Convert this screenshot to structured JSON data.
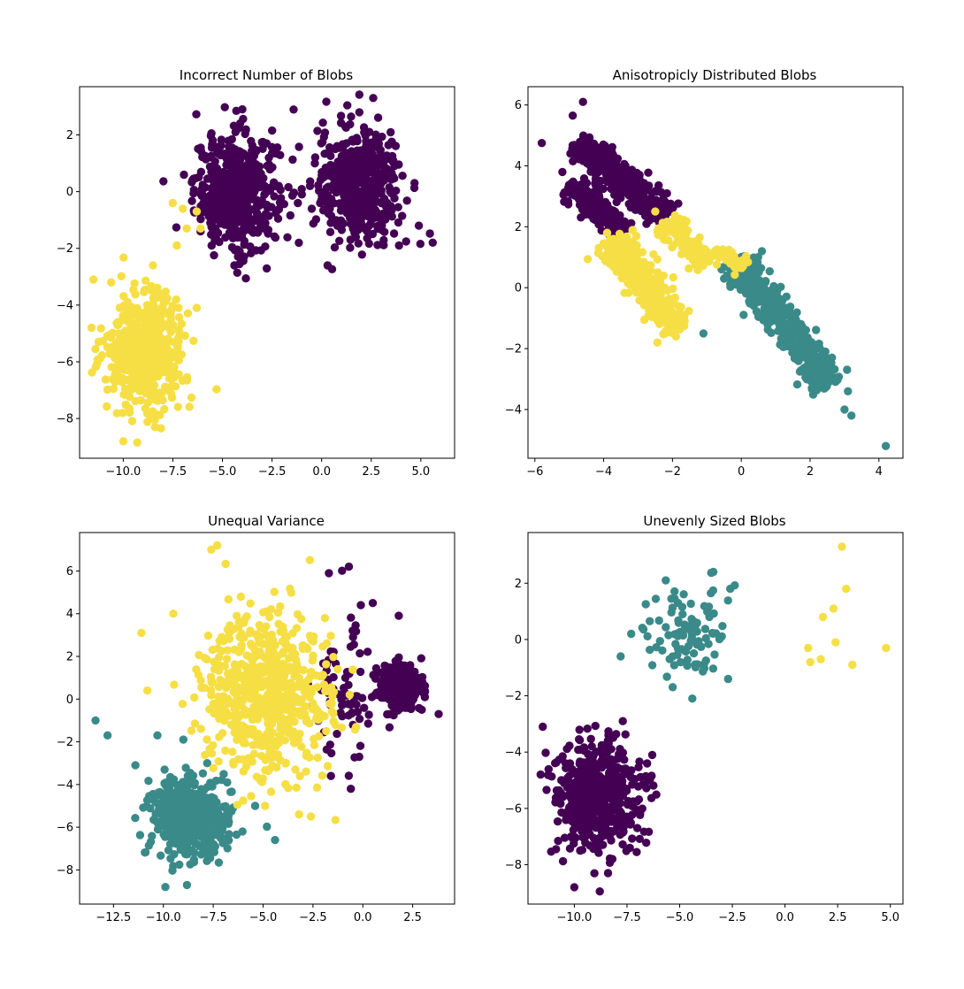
{
  "figure": {
    "background": "#ffffff",
    "colors": {
      "cluster_a": "#440154",
      "cluster_b": "#3b8a8a",
      "cluster_c": "#f5df45"
    }
  },
  "chart_data": [
    {
      "type": "scatter",
      "title": "Incorrect Number of Blobs",
      "xlabel": "",
      "ylabel": "",
      "xlim": [
        -12.2,
        6.7
      ],
      "ylim": [
        -9.4,
        3.7
      ],
      "xticks": [
        -10,
        -7.5,
        -5,
        -2.5,
        0,
        2.5,
        5
      ],
      "xtick_labels": [
        "−10.0",
        "−7.5",
        "−5.0",
        "−2.5",
        "0.0",
        "2.5",
        "5.0"
      ],
      "yticks": [
        -8,
        -6,
        -4,
        -2,
        0,
        2
      ],
      "ytick_labels": [
        "−8",
        "−6",
        "−4",
        "−2",
        "0",
        "2"
      ],
      "grid": false,
      "legend": "none",
      "series": [
        {
          "color": "#440154",
          "clusters": [
            {
              "cx": -4.3,
              "cy": 0.0,
              "sx": 1.05,
              "sy": 1.0,
              "n": 500
            },
            {
              "cx": 1.9,
              "cy": 0.25,
              "sx": 1.05,
              "sy": 1.0,
              "n": 500
            }
          ],
          "points": [
            [
              -4.0,
              2.9
            ],
            [
              -4.3,
              2.85
            ],
            [
              2.6,
              3.3
            ],
            [
              1.9,
              2.8
            ],
            [
              5.6,
              -1.8
            ],
            [
              4.9,
              -1.2
            ],
            [
              -4.4,
              -2.6
            ],
            [
              0.3,
              -2.6
            ],
            [
              -1.0,
              -0.1
            ],
            [
              -0.5,
              -0.6
            ],
            [
              -1.2,
              -0.4
            ],
            [
              3.9,
              -1.9
            ],
            [
              -6.1,
              -1.4
            ]
          ]
        },
        {
          "color": "#f5df45",
          "clusters": [
            {
              "cx": -8.9,
              "cy": -5.6,
              "sx": 1.0,
              "sy": 1.0,
              "n": 500
            }
          ],
          "points": [
            [
              -11.5,
              -3.1
            ],
            [
              -10.0,
              -8.8
            ],
            [
              -8.4,
              -8.3
            ],
            [
              -7.5,
              -0.4
            ],
            [
              -7.0,
              -0.6
            ],
            [
              -6.8,
              -1.3
            ],
            [
              -6.3,
              -0.7
            ],
            [
              -6.1,
              -1.3
            ],
            [
              -7.3,
              -1.9
            ],
            [
              -6.3,
              -4.1
            ],
            [
              -11.6,
              -4.8
            ]
          ]
        }
      ]
    },
    {
      "type": "scatter",
      "title": "Anisotropicly Distributed Blobs",
      "xlabel": "",
      "ylabel": "",
      "xlim": [
        -6.2,
        4.7
      ],
      "ylim": [
        -5.6,
        6.6
      ],
      "xticks": [
        -6,
        -4,
        -2,
        0,
        2,
        4
      ],
      "xtick_labels": [
        "−6",
        "−4",
        "−2",
        "0",
        "2",
        "4"
      ],
      "yticks": [
        -4,
        -2,
        0,
        2,
        4,
        6
      ],
      "ytick_labels": [
        "−4",
        "−2",
        "0",
        "2",
        "4",
        "6"
      ],
      "grid": false,
      "legend": "none",
      "series": [
        {
          "color": "#440154",
          "segments": [
            {
              "x1": -4.8,
              "y1": 4.8,
              "x2": -2.2,
              "y2": 2.3,
              "w": 0.28,
              "n": 320
            },
            {
              "x1": -5.0,
              "y1": 3.4,
              "x2": -3.4,
              "y2": 1.8,
              "w": 0.22,
              "n": 180
            }
          ],
          "points": [
            [
              -5.8,
              4.75
            ],
            [
              -4.6,
              6.1
            ],
            [
              -5.2,
              3.8
            ],
            [
              -4.9,
              5.65
            ],
            [
              -5.0,
              3.3
            ]
          ]
        },
        {
          "color": "#3b8a8a",
          "segments": [
            {
              "x1": -0.2,
              "y1": 0.9,
              "x2": 2.6,
              "y2": -3.2,
              "w": 0.25,
              "n": 500
            }
          ],
          "points": [
            [
              4.2,
              -5.2
            ],
            [
              3.2,
              -4.2
            ],
            [
              3.0,
              -4.0
            ],
            [
              3.1,
              -3.4
            ],
            [
              0.6,
              1.2
            ],
            [
              -0.5,
              0.3
            ],
            [
              -1.1,
              -1.5
            ]
          ]
        },
        {
          "color": "#f5df45",
          "segments": [
            {
              "x1": -3.8,
              "y1": 1.6,
              "x2": -1.8,
              "y2": -1.4,
              "w": 0.28,
              "n": 320
            },
            {
              "x1": -2.2,
              "y1": 2.2,
              "x2": -1.0,
              "y2": 0.8,
              "w": 0.22,
              "n": 120
            },
            {
              "x1": -0.7,
              "y1": 1.3,
              "x2": 0.1,
              "y2": 0.7,
              "w": 0.15,
              "n": 40
            }
          ],
          "points": [
            [
              -3.9,
              1.8
            ],
            [
              -1.9,
              -1.6
            ],
            [
              -2.5,
              2.5
            ]
          ]
        }
      ]
    },
    {
      "type": "scatter",
      "title": "Unequal Variance",
      "xlabel": "",
      "ylabel": "",
      "xlim": [
        -14.2,
        4.6
      ],
      "ylim": [
        -9.6,
        7.8
      ],
      "xticks": [
        -12.5,
        -10,
        -7.5,
        -5,
        -2.5,
        0,
        2.5
      ],
      "xtick_labels": [
        "−12.5",
        "−10.0",
        "−7.5",
        "−5.0",
        "−2.5",
        "0.0",
        "2.5"
      ],
      "yticks": [
        -8,
        -6,
        -4,
        -2,
        0,
        2,
        4,
        6
      ],
      "ytick_labels": [
        "−8",
        "−6",
        "−4",
        "−2",
        "0",
        "2",
        "4",
        "6"
      ],
      "grid": false,
      "legend": "none",
      "series": [
        {
          "color": "#440154",
          "clusters": [
            {
              "cx": 1.9,
              "cy": 0.5,
              "sx": 0.55,
              "sy": 0.55,
              "n": 300
            },
            {
              "cx": -1.0,
              "cy": 0.2,
              "sx": 0.75,
              "sy": 1.8,
              "n": 70
            }
          ],
          "points": [
            [
              -0.7,
              6.2
            ],
            [
              0.5,
              4.5
            ],
            [
              -1.7,
              5.9
            ],
            [
              -0.1,
              4.4
            ],
            [
              1.8,
              3.9
            ],
            [
              -0.6,
              -4.2
            ],
            [
              -1.6,
              -3.6
            ],
            [
              3.8,
              -0.7
            ]
          ]
        },
        {
          "color": "#3b8a8a",
          "clusters": [
            {
              "cx": -8.7,
              "cy": -5.6,
              "sx": 0.95,
              "sy": 0.9,
              "n": 500
            }
          ],
          "points": [
            [
              -13.4,
              -1.0
            ],
            [
              -12.8,
              -1.7
            ],
            [
              -9.9,
              -8.8
            ],
            [
              -4.4,
              -6.6
            ],
            [
              -5.4,
              -5.0
            ],
            [
              -6.8,
              -3.9
            ],
            [
              -11.4,
              -3.1
            ],
            [
              -9.0,
              -1.9
            ],
            [
              -7.8,
              -3.0
            ],
            [
              -10.3,
              -1.7
            ]
          ]
        },
        {
          "color": "#f5df45",
          "clusters": [
            {
              "cx": -4.8,
              "cy": 0.3,
              "sx": 1.55,
              "sy": 1.9,
              "n": 650
            }
          ],
          "points": [
            [
              -7.3,
              7.2
            ],
            [
              -7.6,
              7.0
            ],
            [
              -11.1,
              3.1
            ],
            [
              -9.5,
              4.0
            ],
            [
              -10.8,
              0.4
            ],
            [
              -2.6,
              -5.5
            ],
            [
              -3.2,
              -5.4
            ],
            [
              -4.9,
              -5.0
            ]
          ]
        }
      ]
    },
    {
      "type": "scatter",
      "title": "Unevenly Sized Blobs",
      "xlabel": "",
      "ylabel": "",
      "xlim": [
        -12.2,
        5.6
      ],
      "ylim": [
        -9.4,
        3.8
      ],
      "xticks": [
        -10,
        -7.5,
        -5,
        -2.5,
        0,
        2.5,
        5
      ],
      "xtick_labels": [
        "−10.0",
        "−7.5",
        "−5.0",
        "−2.5",
        "0.0",
        "2.5",
        "5.0"
      ],
      "yticks": [
        -8,
        -6,
        -4,
        -2,
        0,
        2
      ],
      "ytick_labels": [
        "−8",
        "−6",
        "−4",
        "−2",
        "0",
        "2"
      ],
      "grid": false,
      "legend": "none",
      "series": [
        {
          "color": "#440154",
          "clusters": [
            {
              "cx": -8.9,
              "cy": -5.6,
              "sx": 1.0,
              "sy": 1.0,
              "n": 500
            }
          ],
          "points": [
            [
              -11.5,
              -3.1
            ],
            [
              -10.0,
              -8.8
            ],
            [
              -8.4,
              -8.3
            ],
            [
              -6.3,
              -4.1
            ],
            [
              -11.6,
              -4.8
            ],
            [
              -7.7,
              -2.9
            ]
          ]
        },
        {
          "color": "#3b8a8a",
          "clusters": [
            {
              "cx": -4.6,
              "cy": 0.1,
              "sx": 0.95,
              "sy": 0.85,
              "n": 100
            }
          ],
          "points": [
            [
              -3.4,
              2.4
            ],
            [
              -7.8,
              -0.6
            ],
            [
              -2.6,
              1.8
            ],
            [
              -2.7,
              -1.4
            ],
            [
              -4.4,
              -2.1
            ],
            [
              -7.3,
              0.2
            ]
          ]
        },
        {
          "color": "#f5df45",
          "points": [
            [
              2.7,
              3.3
            ],
            [
              2.9,
              1.8
            ],
            [
              1.1,
              -0.3
            ],
            [
              1.2,
              -0.8
            ],
            [
              1.7,
              -0.7
            ],
            [
              2.3,
              1.1
            ],
            [
              1.8,
              0.8
            ],
            [
              3.2,
              -0.9
            ],
            [
              4.8,
              -0.3
            ],
            [
              2.4,
              -0.1
            ]
          ]
        }
      ]
    }
  ]
}
